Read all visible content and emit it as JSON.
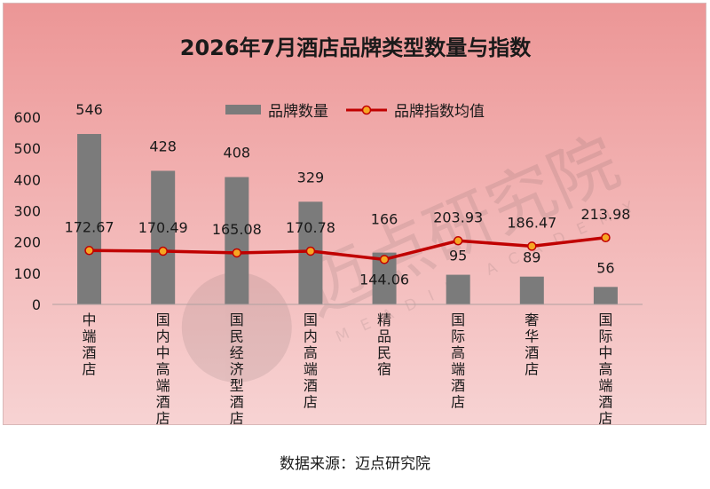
{
  "chart_data": {
    "type": "bar",
    "title": "2026年7月酒店品牌类型数量与指数",
    "categories": [
      "中端酒店",
      "国内中高端酒店",
      "国民经济型酒店",
      "国内高端酒店",
      "精品民宿",
      "国际高端酒店",
      "奢华酒店",
      "国际中高端酒店"
    ],
    "series": [
      {
        "name": "品牌数量",
        "type": "bar",
        "color": "#7b7b7b",
        "values": [
          546,
          428,
          408,
          329,
          166,
          95,
          89,
          56
        ],
        "labels": [
          "546",
          "428",
          "408",
          "329",
          "166",
          "95",
          "89",
          "56"
        ]
      },
      {
        "name": "品牌指数均值",
        "type": "line",
        "color": "#c00000",
        "marker_color": "#f6a623",
        "values": [
          172.67,
          170.49,
          165.08,
          170.78,
          144.06,
          203.93,
          186.47,
          213.98
        ],
        "labels": [
          "172.67",
          "170.49",
          "165.08",
          "170.78",
          "144.06",
          "203.93",
          "186.47",
          "213.98"
        ]
      }
    ],
    "ylim": [
      0,
      600
    ],
    "yticks": [
      0,
      100,
      200,
      300,
      400,
      500,
      600
    ],
    "ytick_labels": [
      "0",
      "100",
      "200",
      "300",
      "400",
      "500",
      "600"
    ],
    "legend": "top-center",
    "grid": false
  },
  "source": "数据来源：迈点研究院",
  "watermark": {
    "text": "迈点研究院",
    "sub": "MEADIN ACADEMY",
    "icon": "meadin-logo-icon"
  }
}
